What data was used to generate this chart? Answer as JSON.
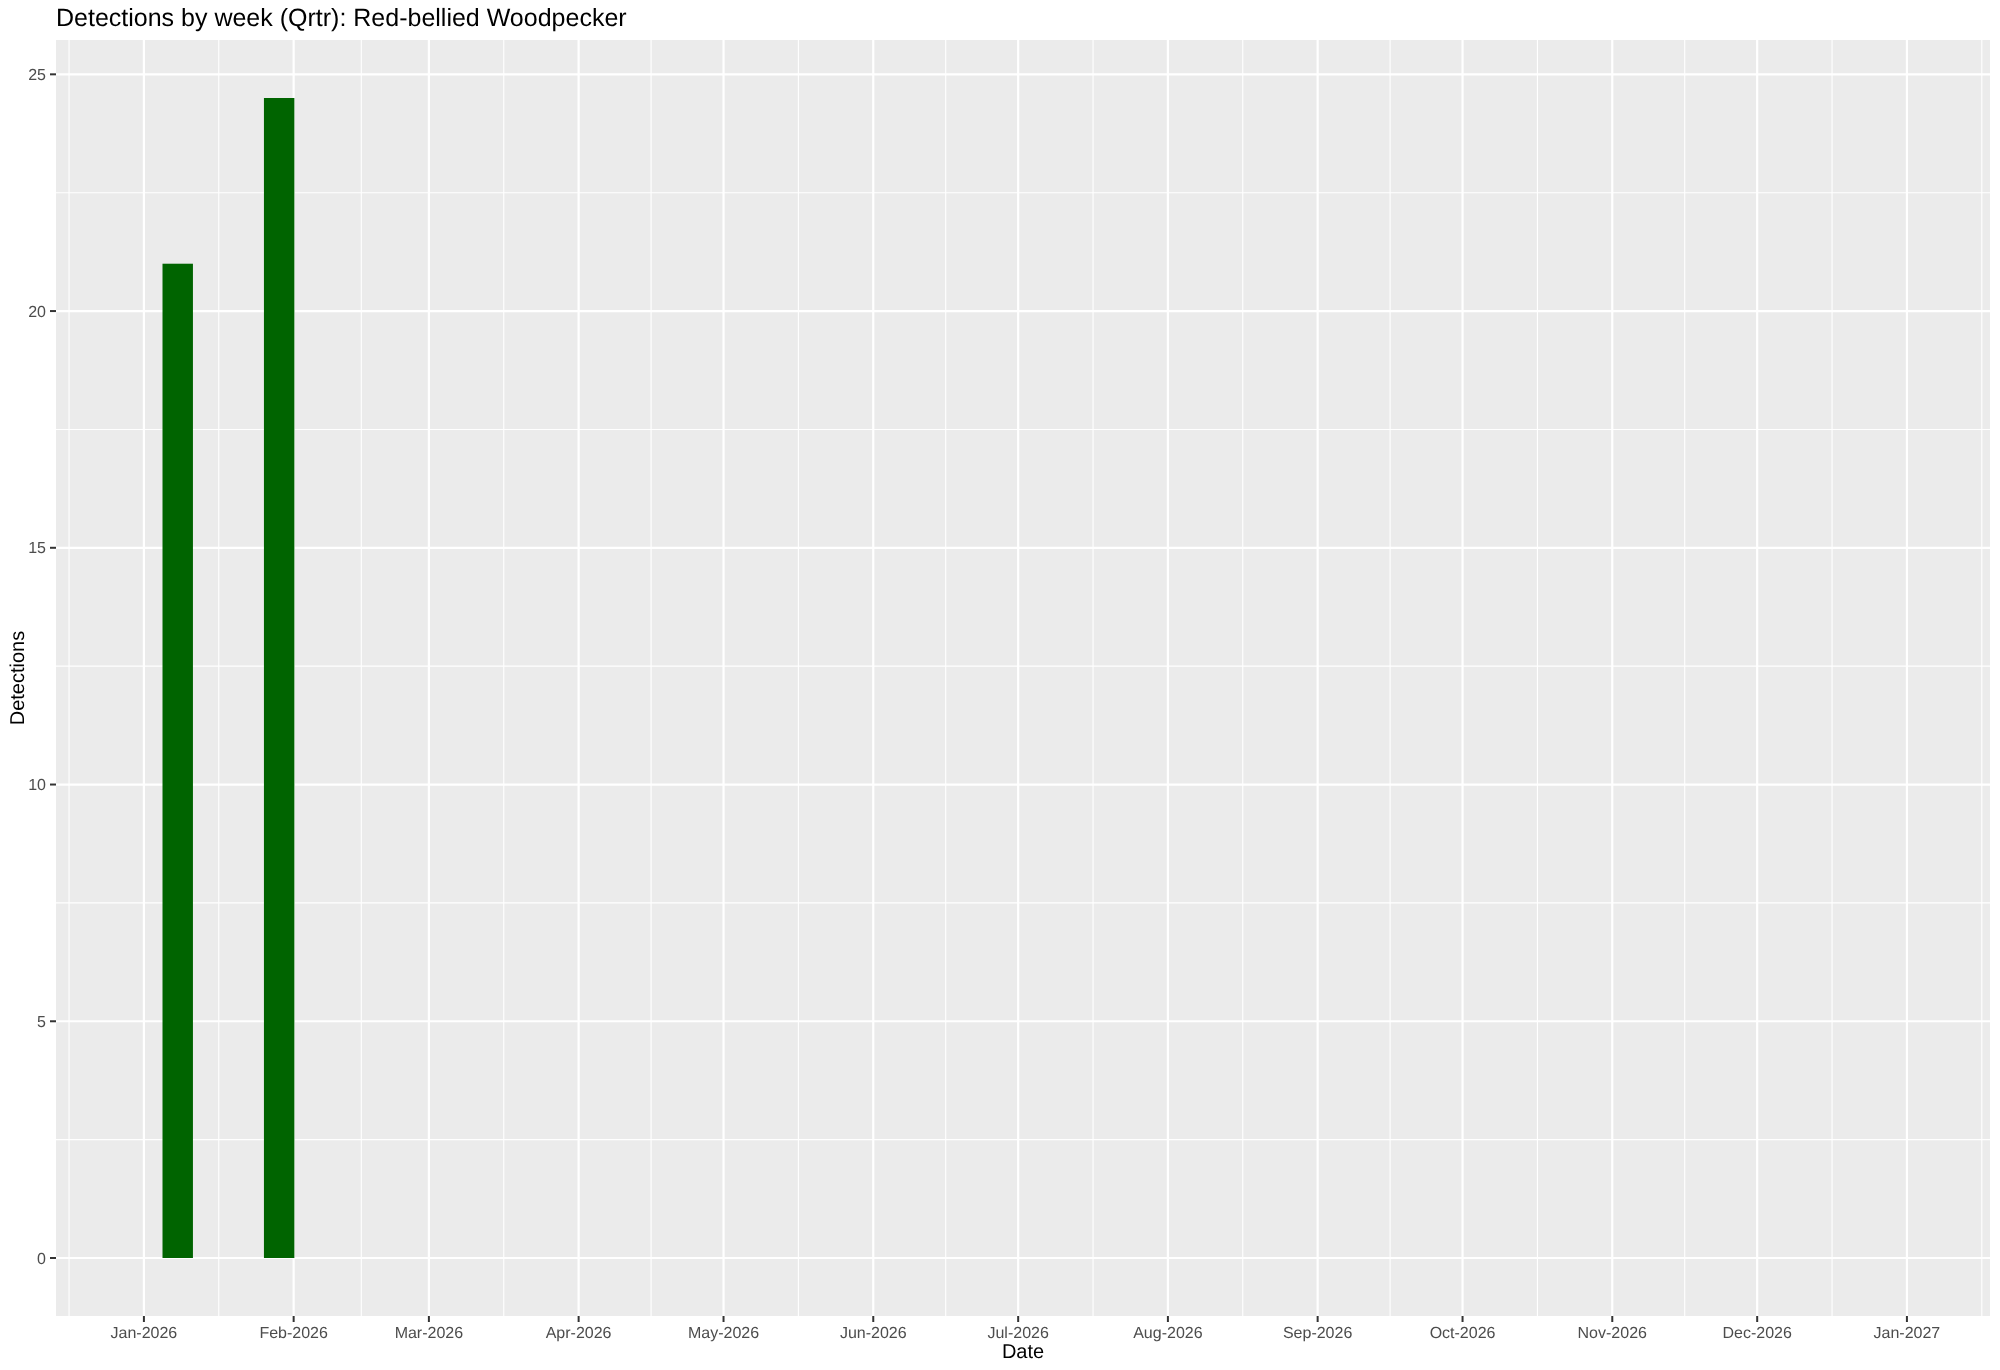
{
  "chart_data": {
    "type": "bar",
    "title": "Detections by week (Qrtr): Red-bellied Woodpecker",
    "xlabel": "Date",
    "ylabel": "Detections",
    "x": [
      "2026-01-08",
      "2026-01-29"
    ],
    "values": [
      21,
      24.5
    ],
    "color": "#006400",
    "xlim": [
      "2025-12-13T19:12",
      "2027-01-18T04:48"
    ],
    "xticks": [
      {
        "value": "2026-01-01",
        "label": "Jan-2026"
      },
      {
        "value": "2026-02-01",
        "label": "Feb-2026"
      },
      {
        "value": "2026-03-01",
        "label": "Mar-2026"
      },
      {
        "value": "2026-04-01",
        "label": "Apr-2026"
      },
      {
        "value": "2026-05-01",
        "label": "May-2026"
      },
      {
        "value": "2026-06-01",
        "label": "Jun-2026"
      },
      {
        "value": "2026-07-01",
        "label": "Jul-2026"
      },
      {
        "value": "2026-08-01",
        "label": "Aug-2026"
      },
      {
        "value": "2026-09-01",
        "label": "Sep-2026"
      },
      {
        "value": "2026-10-01",
        "label": "Oct-2026"
      },
      {
        "value": "2026-11-01",
        "label": "Nov-2026"
      },
      {
        "value": "2026-12-01",
        "label": "Dec-2026"
      },
      {
        "value": "2027-01-01",
        "label": "Jan-2027"
      }
    ],
    "ylim": [
      -1.225,
      25.725
    ],
    "yticks": [
      0,
      5,
      10,
      15,
      20,
      25
    ],
    "grid": true
  }
}
